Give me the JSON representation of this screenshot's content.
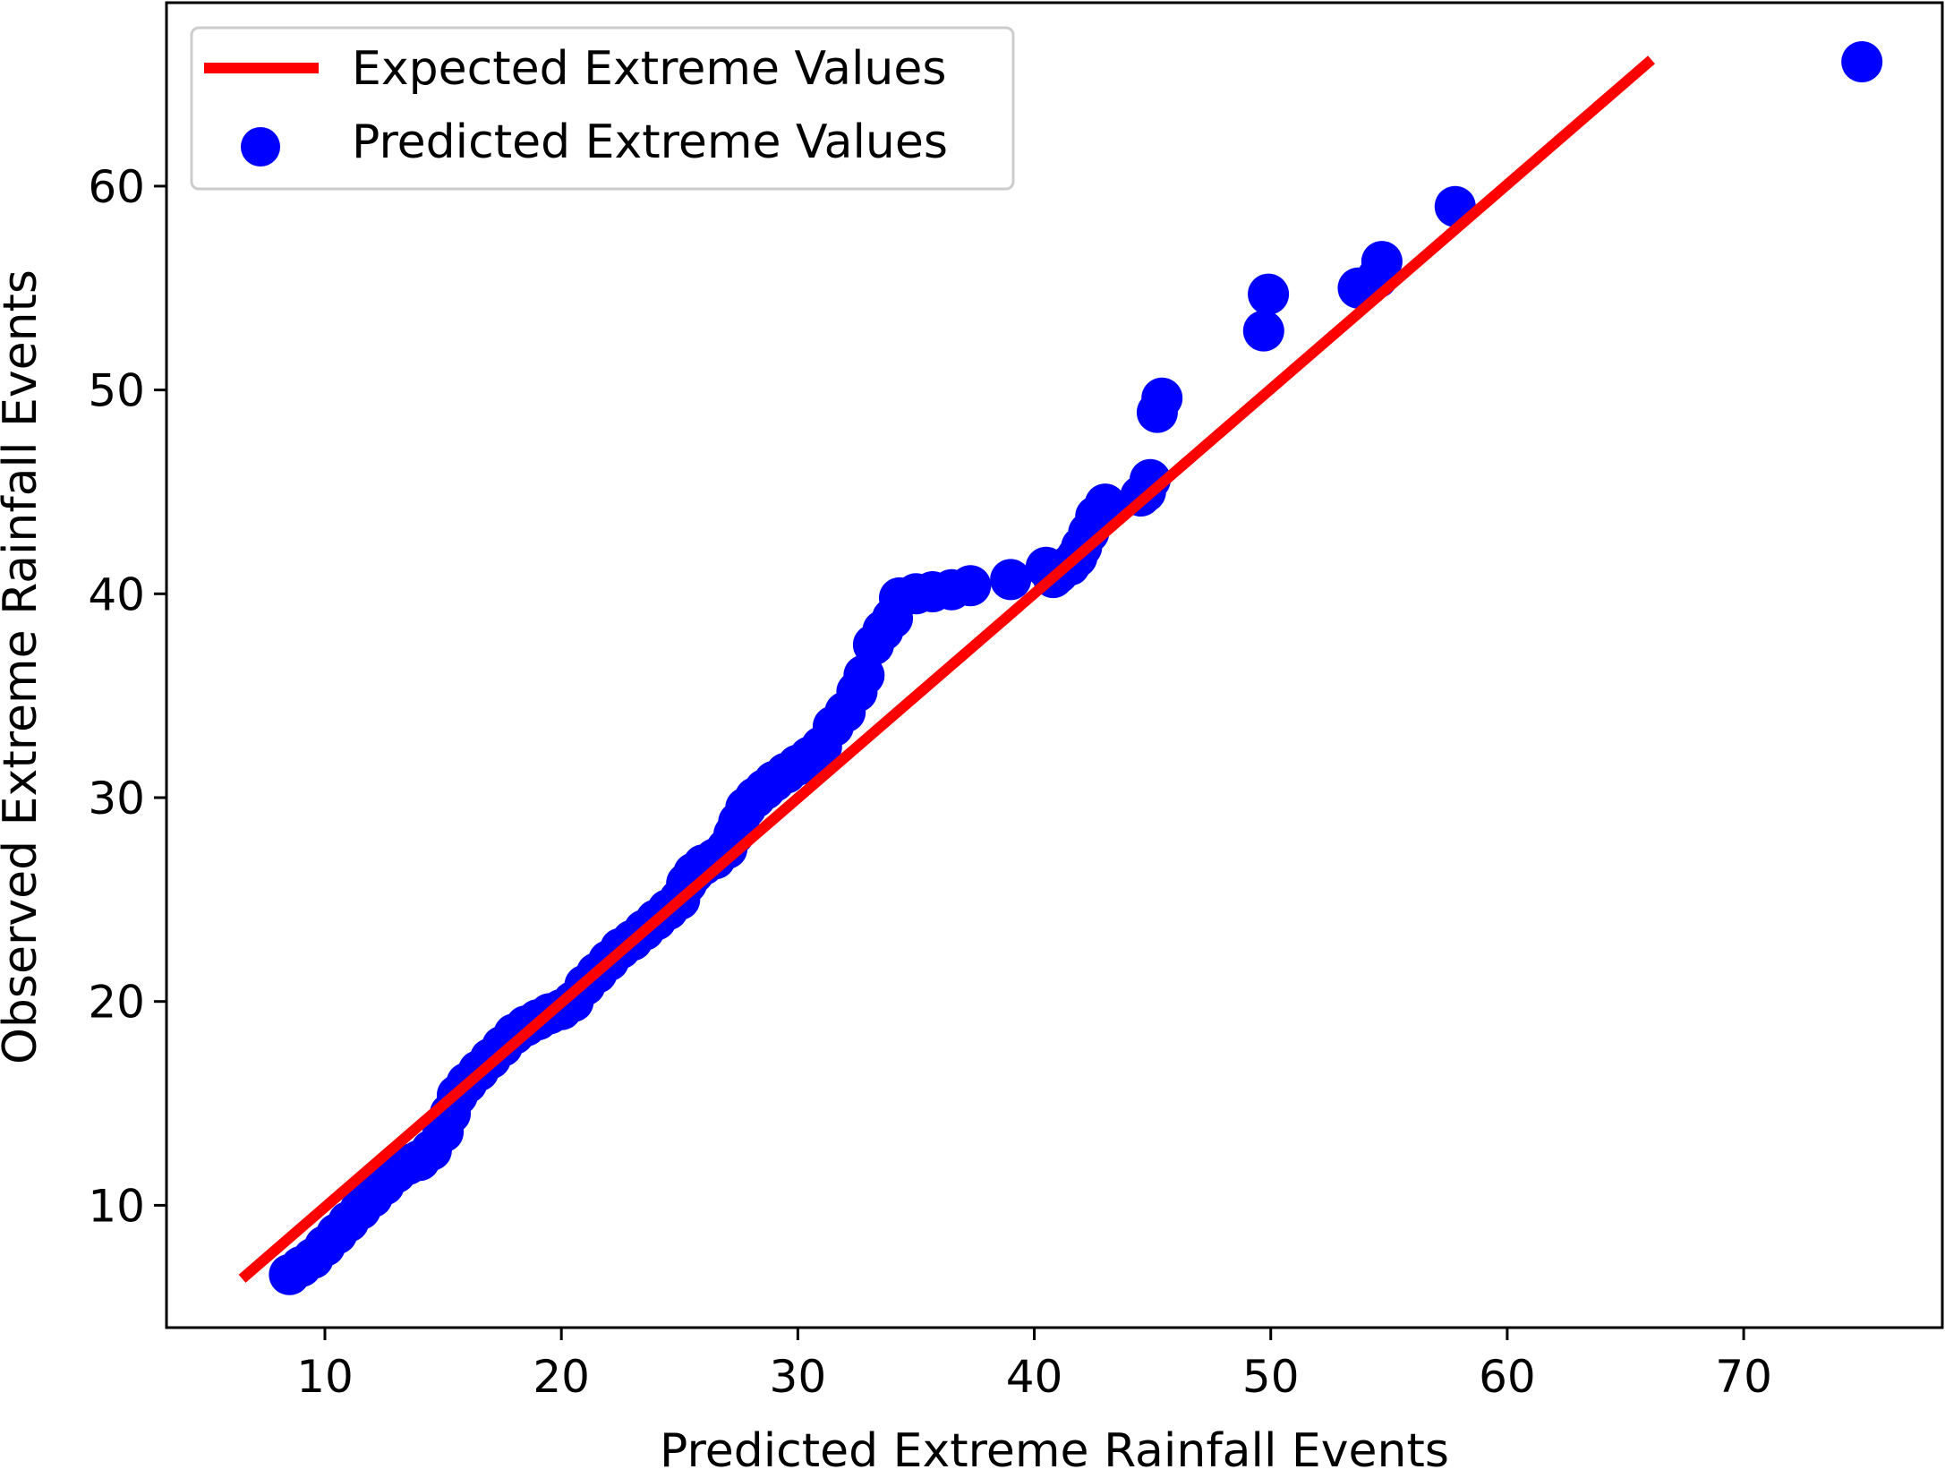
{
  "chart_data": {
    "type": "scatter",
    "title": "",
    "xlabel": "Predicted Extreme Rainfall Events",
    "ylabel": "Observed Extreme Rainfall Events",
    "xlim": [
      3.3,
      78.4
    ],
    "ylim": [
      4.0,
      69.0
    ],
    "xticks": [
      10,
      20,
      30,
      40,
      50,
      60,
      70
    ],
    "yticks": [
      10,
      20,
      30,
      40,
      50,
      60
    ],
    "grid": false,
    "legend_position": "upper-left",
    "colors": {
      "line": "#ff0000",
      "points": "#0000ff",
      "axes": "#000000",
      "legend_border": "#cccccc"
    },
    "series": [
      {
        "name": "Expected Extreme Values",
        "kind": "line",
        "x": [
          6.5,
          66.1
        ],
        "y": [
          6.4,
          66.2
        ]
      },
      {
        "name": "Predicted Extreme Values",
        "kind": "scatter",
        "x": [
          8.5,
          9.0,
          9.5,
          10.0,
          10.5,
          11.0,
          11.5,
          12.0,
          12.5,
          13.0,
          13.5,
          14.0,
          14.5,
          15.0,
          15.3,
          15.6,
          16.0,
          16.5,
          17.0,
          17.5,
          18.0,
          18.5,
          19.0,
          19.5,
          20.0,
          20.5,
          21.0,
          21.5,
          22.0,
          22.5,
          23.0,
          23.5,
          24.0,
          24.5,
          25.0,
          25.3,
          25.6,
          26.0,
          26.5,
          27.0,
          27.3,
          27.5,
          27.8,
          28.2,
          28.6,
          29.0,
          29.5,
          30.0,
          30.5,
          31.0,
          31.5,
          32.0,
          32.5,
          32.8,
          33.2,
          33.6,
          34.0,
          34.3,
          35.0,
          35.7,
          36.5,
          37.3,
          39.0,
          40.5,
          40.8,
          41.0,
          41.5,
          41.8,
          42.0,
          42.3,
          42.6,
          43.0,
          44.5,
          44.7,
          44.9,
          45.2,
          45.4,
          49.7,
          49.9,
          53.7,
          54.5,
          54.7,
          57.8,
          75.0
        ],
        "y": [
          6.6,
          7.0,
          7.4,
          8.0,
          8.6,
          9.2,
          9.8,
          10.4,
          11.0,
          11.6,
          12.0,
          12.2,
          12.7,
          13.6,
          14.5,
          15.4,
          16.0,
          16.6,
          17.2,
          17.8,
          18.4,
          18.8,
          19.1,
          19.4,
          19.6,
          20.0,
          20.8,
          21.4,
          22.0,
          22.6,
          23.0,
          23.5,
          24.0,
          24.5,
          25.0,
          25.8,
          26.3,
          26.7,
          27.0,
          27.5,
          28.2,
          28.8,
          29.5,
          30.0,
          30.4,
          30.8,
          31.2,
          31.6,
          32.0,
          32.5,
          33.5,
          34.2,
          35.2,
          36.0,
          37.5,
          38.2,
          38.8,
          39.8,
          40.0,
          40.1,
          40.2,
          40.4,
          40.7,
          41.3,
          40.8,
          41.0,
          41.4,
          41.8,
          42.3,
          43.0,
          43.8,
          44.4,
          44.8,
          45.0,
          45.6,
          48.9,
          49.6,
          52.9,
          54.7,
          55.0,
          55.5,
          56.3,
          59.0,
          66.1
        ]
      }
    ]
  }
}
